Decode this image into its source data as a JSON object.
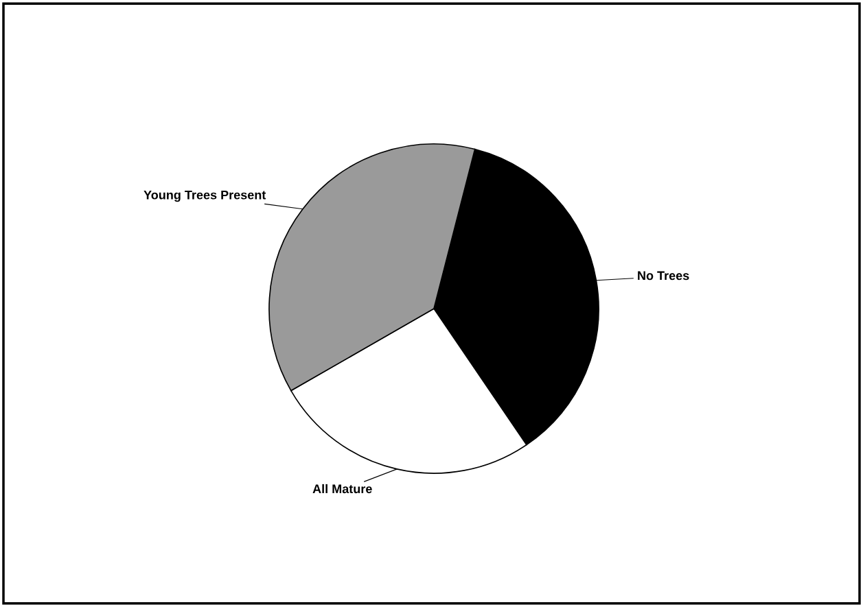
{
  "chart_data": {
    "type": "pie",
    "categories": [
      "No Trees",
      "All Mature",
      "Young Trees Present"
    ],
    "values": [
      36.5,
      26.2,
      37.3
    ],
    "colors": [
      "#000000",
      "#ffffff",
      "#9a9a9a"
    ]
  }
}
